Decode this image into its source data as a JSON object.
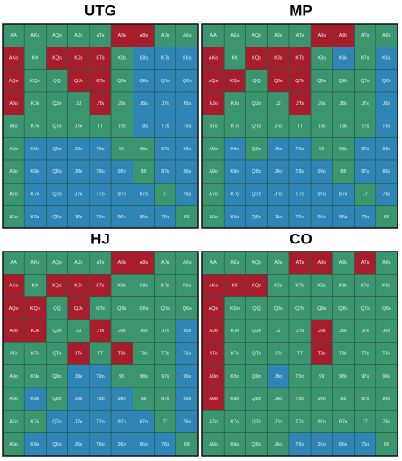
{
  "palette": {
    "g": "#3b9670",
    "r": "#a81d2b",
    "b": "#2f85b5"
  },
  "grids": [
    {
      "title": "UTG",
      "cells": [
        [
          "AA",
          "AKs",
          "AQs",
          "AJs",
          "ATs",
          "A9s",
          "A8s",
          "A7s",
          "A6s"
        ],
        [
          "AKo",
          "KK",
          "KQs",
          "KJs",
          "KTs",
          "K9s",
          "K8s",
          "K7s",
          "K6s"
        ],
        [
          "AQo",
          "KQo",
          "QQ",
          "QJs",
          "QTs",
          "Q9s",
          "Q8s",
          "Q7s",
          "Q6s"
        ],
        [
          "AJo",
          "KJo",
          "QJo",
          "JJ",
          "JTs",
          "J9s",
          "J8s",
          "J7s",
          "J6s"
        ],
        [
          "ATo",
          "KTo",
          "QTo",
          "JTo",
          "TT",
          "T9s",
          "T8s",
          "T7s",
          "T6s"
        ],
        [
          "A9o",
          "K9o",
          "Q9o",
          "J9o",
          "T9o",
          "99",
          "98s",
          "97s",
          "96s"
        ],
        [
          "A8o",
          "K8o",
          "Q8o",
          "J8o",
          "T8o",
          "98o",
          "88",
          "87s",
          "86s"
        ],
        [
          "A7o",
          "K7o",
          "Q7o",
          "J7o",
          "T7o",
          "97o",
          "87o",
          "77",
          "76s"
        ],
        [
          "A6o",
          "K6o",
          "Q6o",
          "J6o",
          "T6o",
          "96o",
          "86o",
          "76o",
          "66"
        ]
      ],
      "colors": [
        "gggggrrgg",
        "rgrrrgbbb",
        "rggrrgbbb",
        "rgggrgbbb",
        "ggggggbbb",
        "gbbbbggbb",
        "gbbbbbgbb",
        "gbbbbbbgb",
        "gbbbbbbbg"
      ]
    },
    {
      "title": "MP",
      "cells": [
        [
          "AA",
          "AKs",
          "AQs",
          "AJs",
          "ATs",
          "A9s",
          "A8s",
          "A7s",
          "A6s"
        ],
        [
          "AKo",
          "KK",
          "KQs",
          "KJs",
          "KTs",
          "K9s",
          "K8s",
          "K7s",
          "K6s"
        ],
        [
          "AQo",
          "KQo",
          "QQ",
          "QJs",
          "QTs",
          "Q9s",
          "Q8s",
          "Q7s",
          "Q6s"
        ],
        [
          "AJo",
          "KJo",
          "QJo",
          "JJ",
          "JTs",
          "J9s",
          "J8s",
          "J7s",
          "J6s"
        ],
        [
          "ATo",
          "KTo",
          "QTo",
          "JTo",
          "TT",
          "T9s",
          "T8s",
          "T7s",
          "T6s"
        ],
        [
          "A9o",
          "K9o",
          "Q9o",
          "J9o",
          "T9o",
          "99",
          "98s",
          "97s",
          "96s"
        ],
        [
          "A8o",
          "K8o",
          "Q8o",
          "J8o",
          "T8o",
          "98o",
          "88",
          "87s",
          "86s"
        ],
        [
          "A7o",
          "K7o",
          "Q7o",
          "J7o",
          "T7o",
          "97o",
          "87o",
          "77",
          "76s"
        ],
        [
          "A6o",
          "K6o",
          "Q6o",
          "J6o",
          "T6o",
          "96o",
          "86o",
          "76o",
          "66"
        ]
      ],
      "colors": [
        "gggggrrgg",
        "rgrrrgbgb",
        "rrgrrgggb",
        "rgggrgggb",
        "ggggggggb",
        "gbgbbggbb",
        "gbbbbbgbb",
        "gbbbbbbgb",
        "gbbbbbbbg"
      ]
    },
    {
      "title": "HJ",
      "cells": [
        [
          "AA",
          "AKs",
          "AQs",
          "AJs",
          "ATs",
          "A9s",
          "A8s",
          "A7s",
          "A6s"
        ],
        [
          "AKo",
          "KK",
          "KQs",
          "KJs",
          "KTs",
          "K9s",
          "K8s",
          "K7s",
          "K6s"
        ],
        [
          "AQo",
          "KQo",
          "QQ",
          "QJs",
          "QTs",
          "Q9s",
          "Q8s",
          "Q7s",
          "Q6s"
        ],
        [
          "AJo",
          "KJo",
          "QJo",
          "JJ",
          "JTs",
          "J9s",
          "J8s",
          "J7s",
          "J6s"
        ],
        [
          "ATo",
          "KTo",
          "QTo",
          "JTo",
          "TT",
          "T9s",
          "T8s",
          "T7s",
          "T6s"
        ],
        [
          "A9o",
          "K9o",
          "Q9o",
          "J9o",
          "T9o",
          "99",
          "98s",
          "97s",
          "96s"
        ],
        [
          "A8o",
          "K8o",
          "Q8o",
          "J8o",
          "T8o",
          "98o",
          "88",
          "87s",
          "86s"
        ],
        [
          "A7o",
          "K7o",
          "Q7o",
          "J7o",
          "T7o",
          "97o",
          "87o",
          "77",
          "76s"
        ],
        [
          "A6o",
          "K6o",
          "Q6o",
          "J6o",
          "T6o",
          "96o",
          "86o",
          "76o",
          "66"
        ]
      ],
      "colors": [
        "gggggrrgg",
        "rgrrrgggg",
        "rrgrggggg",
        "rrggrgggb",
        "gggrgrggb",
        "gggbbgggb",
        "gbgbbbggb",
        "ggbbbbbgb",
        "gbbbbbbbg"
      ]
    },
    {
      "title": "CO",
      "cells": [
        [
          "AA",
          "AKs",
          "AQs",
          "AJs",
          "ATs",
          "A9s",
          "A8s",
          "A7s",
          "A6s"
        ],
        [
          "AKo",
          "KK",
          "KQs",
          "KJs",
          "KTs",
          "K9s",
          "K8s",
          "K7s",
          "K6s"
        ],
        [
          "AQo",
          "KQo",
          "QQ",
          "QJs",
          "QTs",
          "Q9s",
          "Q8s",
          "Q7s",
          "Q6s"
        ],
        [
          "AJo",
          "KJo",
          "QJo",
          "JJ",
          "JTs",
          "J9s",
          "J8s",
          "J7s",
          "J6s"
        ],
        [
          "ATo",
          "KTo",
          "QTo",
          "JTo",
          "TT",
          "T9s",
          "T8s",
          "T7s",
          "T6s"
        ],
        [
          "A9o",
          "K9o",
          "Q9o",
          "J9o",
          "T9o",
          "99",
          "98s",
          "97s",
          "96s"
        ],
        [
          "A8o",
          "K8o",
          "Q8o",
          "J8o",
          "T8o",
          "98o",
          "88",
          "87s",
          "86s"
        ],
        [
          "A7o",
          "K7o",
          "Q7o",
          "J7o",
          "T7o",
          "97o",
          "87o",
          "77",
          "76s"
        ],
        [
          "A6o",
          "K6o",
          "Q6o",
          "J6o",
          "T6o",
          "96o",
          "86o",
          "76o",
          "66"
        ]
      ],
      "colors": [
        "ggggrrgrg",
        "rrrgggggg",
        "rgggggggg",
        "rggggrggg",
        "rggggrggg",
        "rggbggggg",
        "rgggggggg",
        "ggggggggg",
        "ggggbbbbg"
      ]
    }
  ]
}
